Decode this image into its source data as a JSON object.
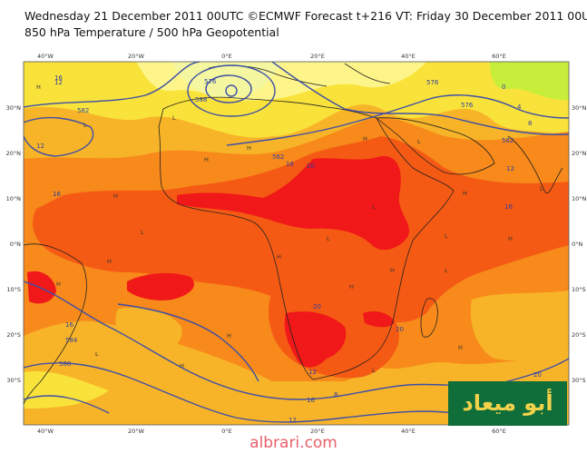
{
  "header": {
    "line1": "Wednesday 21 December 2011 00UTC ©ECMWF Forecast t+216 VT: Friday 30 December 2011 00UTC",
    "line2": "850 hPa Temperature / 500 hPa Geopotential"
  },
  "axes": {
    "lon_labels": [
      "40°W",
      "20°W",
      "0°E",
      "20°E",
      "40°E",
      "60°E"
    ],
    "lat_labels_left": [
      "30°N",
      "20°N",
      "10°N",
      "0°N",
      "10°S",
      "20°S",
      "30°S"
    ],
    "lat_labels_right": [
      "30°N",
      "20°N",
      "10°N",
      "0°N",
      "10°S",
      "20°S",
      "30°S"
    ]
  },
  "contour_labels": [
    "576",
    "588",
    "576",
    "12",
    "582",
    "12",
    "562",
    "16",
    "20",
    "16",
    "4",
    "0",
    "576",
    "8",
    "582",
    "12",
    "16",
    "584",
    "20",
    "20",
    "16",
    "588",
    "12",
    "16",
    "20",
    "8",
    "12",
    "16"
  ],
  "pressure_marks": [
    "H",
    "L",
    "H",
    "H",
    "H",
    "L",
    "L",
    "H",
    "L",
    "H",
    "L",
    "H",
    "L",
    "H",
    "H",
    "L",
    "H",
    "H",
    "L",
    "H",
    "H",
    "L",
    "H",
    "L",
    "H",
    "L"
  ],
  "colors": {
    "deep_red": "#f01818",
    "red_orange": "#f55a14",
    "orange": "#f78a1a",
    "light_orange": "#f8b428",
    "yellow": "#f9e23a",
    "pale_yellow": "#fdf58a",
    "green_yellow": "#c8ee3c",
    "contour": "#3f4fa6",
    "coast": "#222222"
  },
  "watermark": {
    "logo_text": "أبو ميعاد",
    "url": "albrari.com"
  }
}
